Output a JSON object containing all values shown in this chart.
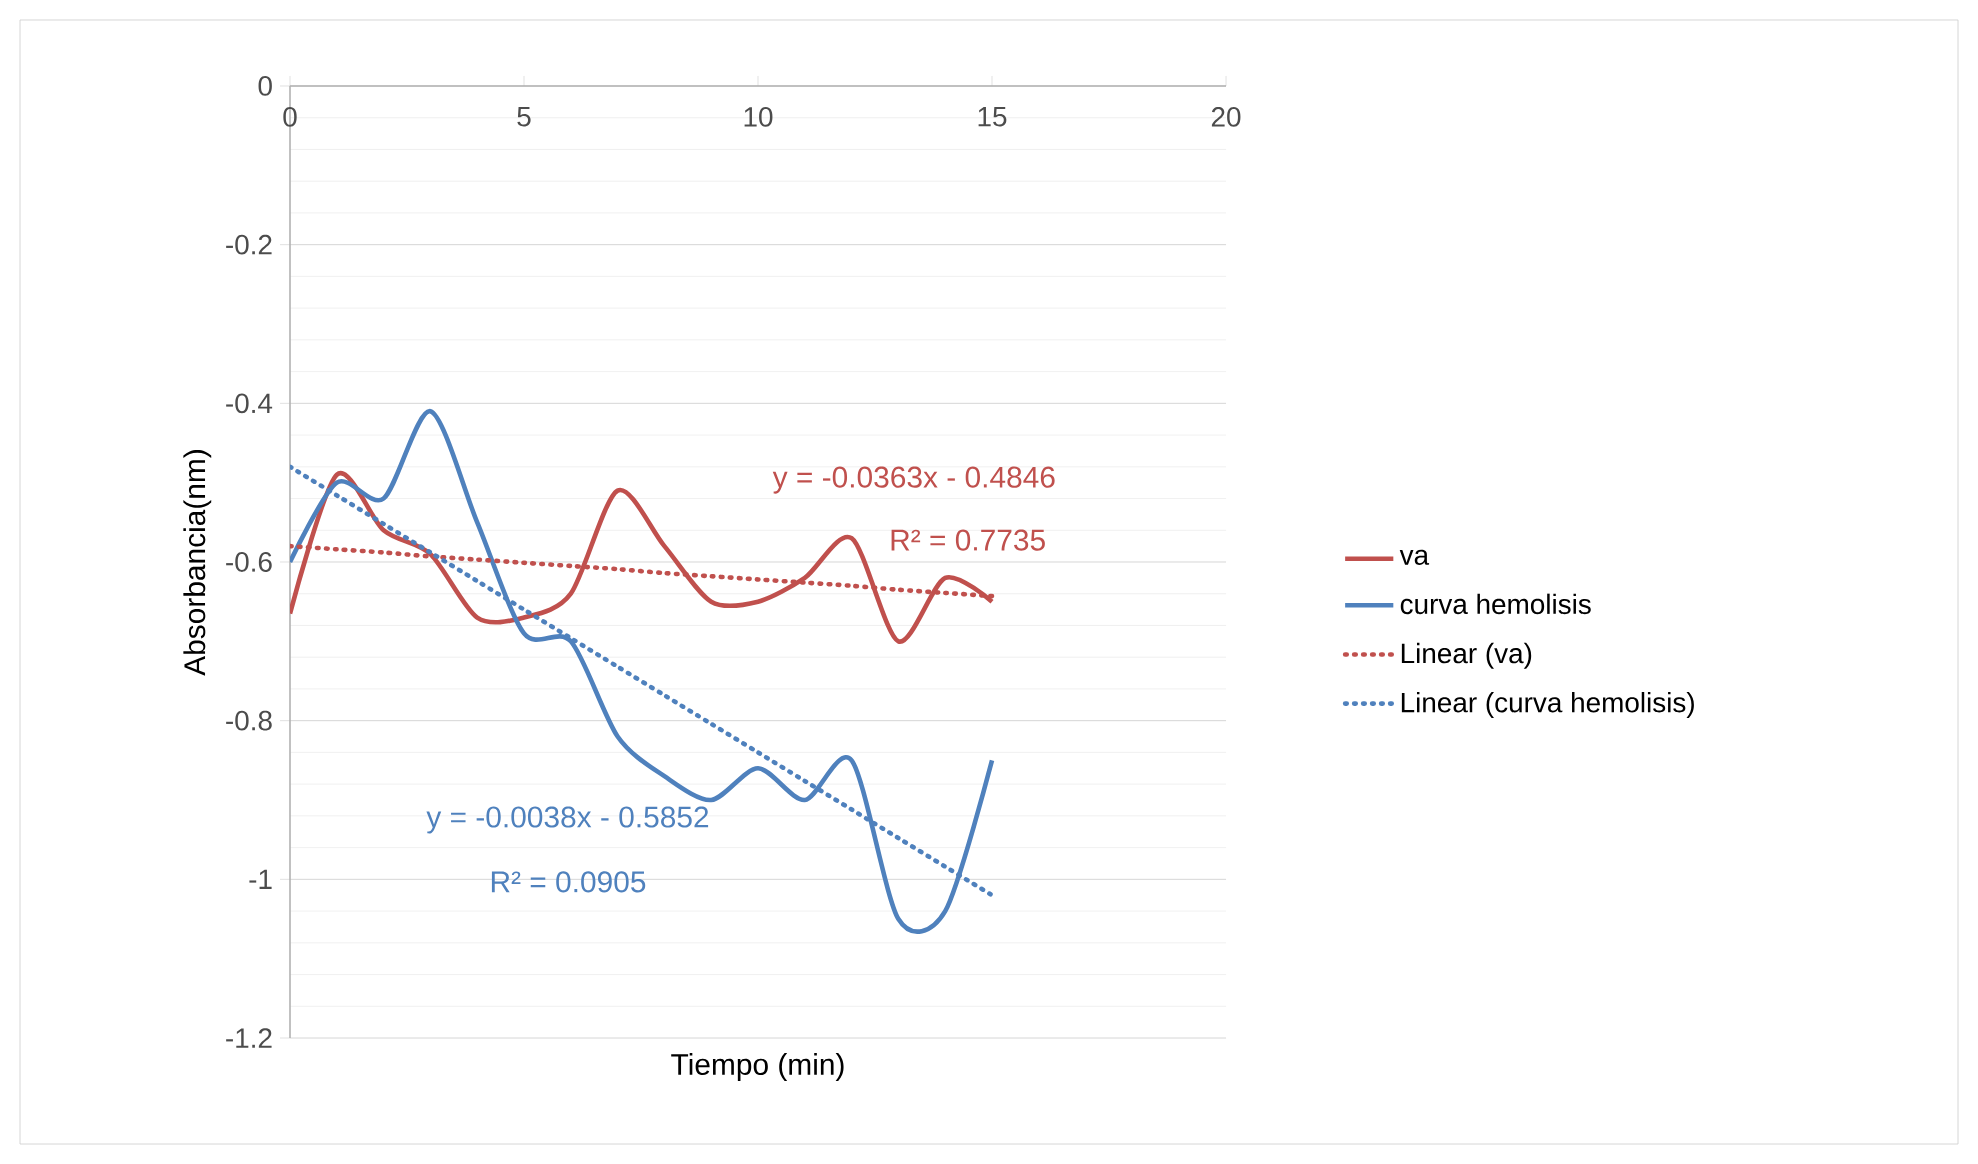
{
  "chart_data": {
    "type": "line",
    "xlabel": "Tiempo (min)",
    "ylabel": "Absorbancia(nm)",
    "x": [
      0,
      1,
      2,
      3,
      4,
      5,
      6,
      7,
      8,
      9,
      10,
      11,
      12,
      13,
      14,
      15
    ],
    "series": [
      {
        "name": "va",
        "color": "#c0504d",
        "line_style": "solid",
        "values": [
          -0.665,
          -0.49,
          -0.56,
          -0.59,
          -0.67,
          -0.67,
          -0.64,
          -0.51,
          -0.58,
          -0.65,
          -0.65,
          -0.62,
          -0.57,
          -0.7,
          -0.62,
          -0.65
        ]
      },
      {
        "name": "curva hemolisis",
        "color": "#4f81bd",
        "line_style": "solid",
        "values": [
          -0.6,
          -0.5,
          -0.52,
          -0.41,
          -0.55,
          -0.69,
          -0.7,
          -0.82,
          -0.87,
          -0.9,
          -0.86,
          -0.9,
          -0.85,
          -1.05,
          -1.04,
          -0.85
        ]
      },
      {
        "name": "Linear (va)",
        "color": "#c0504d",
        "line_style": "dotted",
        "values": [
          -0.58,
          -0.584,
          -0.588,
          -0.593,
          -0.597,
          -0.601,
          -0.605,
          -0.609,
          -0.614,
          -0.618,
          -0.622,
          -0.626,
          -0.63,
          -0.635,
          -0.639,
          -0.643
        ]
      },
      {
        "name": "Linear (curva hemolisis)",
        "color": "#4f81bd",
        "line_style": "dotted",
        "values": [
          -0.48,
          -0.516,
          -0.552,
          -0.588,
          -0.624,
          -0.66,
          -0.696,
          -0.732,
          -0.768,
          -0.804,
          -0.84,
          -0.876,
          -0.912,
          -0.948,
          -0.984,
          -1.02
        ]
      }
    ],
    "annotations": [
      "y = -0.0363x - 0.4846",
      "R² = 0.7735",
      "y = -0.0038x - 0.5852",
      "R² = 0.0905"
    ],
    "xlim": [
      0,
      20
    ],
    "xticks": [
      0,
      5,
      10,
      15,
      20
    ],
    "ylim": [
      -1.2,
      0
    ],
    "yticks": [
      -1.2,
      -1,
      -0.8,
      -0.6,
      -0.4,
      -0.2,
      0
    ],
    "grid": "y",
    "legend": "right",
    "marker": "none"
  }
}
